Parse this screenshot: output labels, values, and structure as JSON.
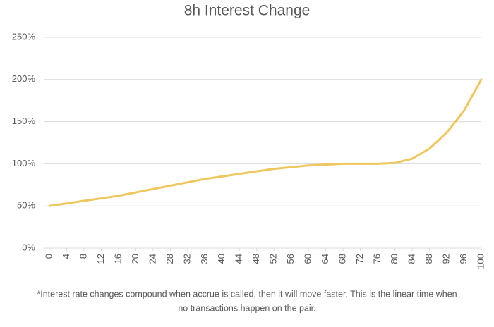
{
  "chart_data": {
    "type": "line",
    "title": "8h Interest Change",
    "x": [
      0,
      4,
      8,
      12,
      16,
      20,
      24,
      28,
      32,
      36,
      40,
      44,
      48,
      52,
      56,
      60,
      64,
      68,
      72,
      76,
      80,
      84,
      88,
      92,
      96,
      100
    ],
    "series": [
      {
        "color": "#efc75e",
        "values": [
          50,
          53,
          56,
          59,
          62,
          66,
          70,
          74,
          78,
          82,
          85,
          88,
          91,
          94,
          96,
          98,
          99,
          100,
          100,
          100,
          101,
          106,
          118,
          137,
          163,
          200
        ]
      }
    ],
    "xlim": [
      0,
      100
    ],
    "xticks": [
      0,
      4,
      8,
      12,
      16,
      20,
      24,
      28,
      32,
      36,
      40,
      44,
      48,
      52,
      56,
      60,
      64,
      68,
      72,
      76,
      80,
      84,
      88,
      92,
      96,
      100
    ],
    "ylim": [
      0,
      250
    ],
    "yticks": [
      {
        "value": 0,
        "label": "0%"
      },
      {
        "value": 50,
        "label": "50%"
      },
      {
        "value": 100,
        "label": "100%"
      },
      {
        "value": 150,
        "label": "150%"
      },
      {
        "value": 200,
        "label": "200%"
      },
      {
        "value": 250,
        "label": "250%"
      }
    ],
    "grid": true,
    "footnote": [
      "*Interest rate changes compound when accrue is called, then it will move faster. This is the linear time when",
      "no transactions happen on the pair."
    ]
  }
}
